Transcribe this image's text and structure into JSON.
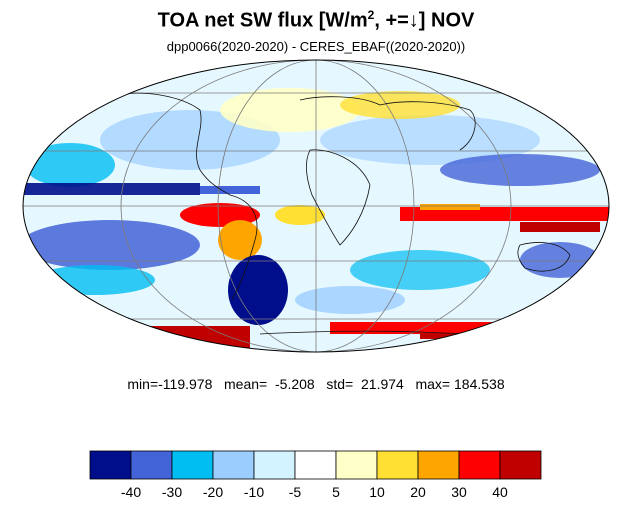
{
  "title": {
    "main": "TOA net SW flux [W/m",
    "sup": "2",
    "rest": ", +=↓]  NOV"
  },
  "subtitle": "dpp0066(2020-2020) - CERES_EBAF((2020-2020))",
  "stats": {
    "text": "min=-119.978   mean=  -5.208   std=  21.974   max= 184.538",
    "min": -119.978,
    "mean": -5.208,
    "std": 21.974,
    "max": 184.538
  },
  "colorbar": {
    "colors": [
      "#000e8c",
      "#4363d8",
      "#00bef2",
      "#9ccdff",
      "#d2f3ff",
      "#ffffff",
      "#ffffc8",
      "#ffe033",
      "#ffa500",
      "#ff0000",
      "#c00000"
    ],
    "labels": [
      "-40",
      "-30",
      "-20",
      "-10",
      "-5",
      "5",
      "10",
      "20",
      "30",
      "40"
    ]
  },
  "map": {
    "projection": "Mollweide",
    "gridlines": true
  }
}
